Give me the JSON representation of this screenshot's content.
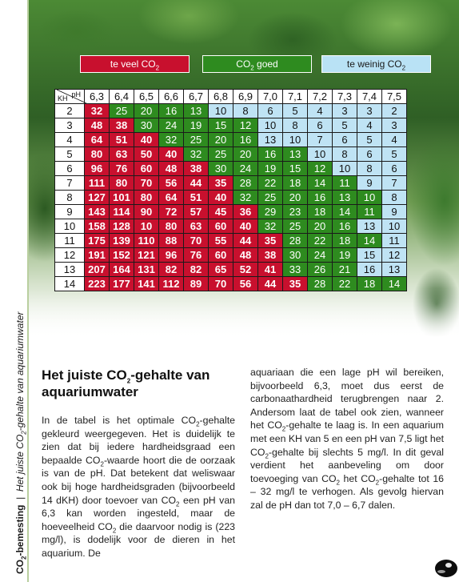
{
  "legend": {
    "too_much": [
      "te veel CO",
      "2"
    ],
    "good": [
      "CO",
      "2",
      " goed"
    ],
    "too_little": [
      "te weinig CO",
      "2"
    ]
  },
  "table": {
    "ph_label": "pH",
    "kh_label": "KH",
    "ph_values": [
      "6,3",
      "6,4",
      "6,5",
      "6,6",
      "6,7",
      "6,8",
      "6,9",
      "7,0",
      "7,1",
      "7,2",
      "7,3",
      "7,4",
      "7,5"
    ],
    "rows": [
      {
        "kh": "2",
        "values": [
          "32",
          "25",
          "20",
          "16",
          "13",
          "10",
          "8",
          "6",
          "5",
          "4",
          "3",
          "3",
          "2"
        ],
        "zones": "rggggbbbbbbbb"
      },
      {
        "kh": "3",
        "values": [
          "48",
          "38",
          "30",
          "24",
          "19",
          "15",
          "12",
          "10",
          "8",
          "6",
          "5",
          "4",
          "3"
        ],
        "zones": "rrgggggbbbbbb"
      },
      {
        "kh": "4",
        "values": [
          "64",
          "51",
          "40",
          "32",
          "25",
          "20",
          "16",
          "13",
          "10",
          "7",
          "6",
          "5",
          "4"
        ],
        "zones": "rrrggggbbbbbb"
      },
      {
        "kh": "5",
        "values": [
          "80",
          "63",
          "50",
          "40",
          "32",
          "25",
          "20",
          "16",
          "13",
          "10",
          "8",
          "6",
          "5"
        ],
        "zones": "rrrrgggggbbbb"
      },
      {
        "kh": "6",
        "values": [
          "96",
          "76",
          "60",
          "48",
          "38",
          "30",
          "24",
          "19",
          "15",
          "12",
          "10",
          "8",
          "6"
        ],
        "zones": "rrrrrgggggbbb"
      },
      {
        "kh": "7",
        "values": [
          "111",
          "80",
          "70",
          "56",
          "44",
          "35",
          "28",
          "22",
          "18",
          "14",
          "11",
          "9",
          "7"
        ],
        "zones": "rrrrrrgggggbb"
      },
      {
        "kh": "8",
        "values": [
          "127",
          "101",
          "80",
          "64",
          "51",
          "40",
          "32",
          "25",
          "20",
          "16",
          "13",
          "10",
          "8"
        ],
        "zones": "rrrrrrggggggb"
      },
      {
        "kh": "9",
        "values": [
          "143",
          "114",
          "90",
          "72",
          "57",
          "45",
          "36",
          "29",
          "23",
          "18",
          "14",
          "11",
          "9"
        ],
        "zones": "rrrrrrrgggggb"
      },
      {
        "kh": "10",
        "values": [
          "158",
          "128",
          "10",
          "80",
          "63",
          "60",
          "40",
          "32",
          "25",
          "20",
          "16",
          "13",
          "10"
        ],
        "zones": "rrrrrrrggggbb"
      },
      {
        "kh": "11",
        "values": [
          "175",
          "139",
          "110",
          "88",
          "70",
          "55",
          "44",
          "35",
          "28",
          "22",
          "18",
          "14",
          "11"
        ],
        "zones": "rrrrrrrrggggb"
      },
      {
        "kh": "12",
        "values": [
          "191",
          "152",
          "121",
          "96",
          "76",
          "60",
          "48",
          "38",
          "30",
          "24",
          "19",
          "15",
          "12"
        ],
        "zones": "rrrrrrrrgggbb"
      },
      {
        "kh": "13",
        "values": [
          "207",
          "164",
          "131",
          "82",
          "82",
          "65",
          "52",
          "41",
          "33",
          "26",
          "21",
          "16",
          "13"
        ],
        "zones": "rrrrrrrrgggbb"
      },
      {
        "kh": "14",
        "values": [
          "223",
          "177",
          "141",
          "112",
          "89",
          "70",
          "56",
          "44",
          "35",
          "28",
          "22",
          "18",
          "14"
        ],
        "zones": "rrrrrrrrrgggg"
      }
    ]
  },
  "side_label": {
    "bold_part": [
      "CO",
      "2",
      "-bemesting"
    ],
    "italic_part": [
      "Het juiste CO",
      "2",
      "-gehalte van aquariumwater"
    ]
  },
  "article": {
    "title": [
      "Het juiste CO",
      "2",
      "-gehalte van aquariumwater"
    ],
    "left_column": [
      "In de tabel is het optimale CO",
      "2",
      "-gehalte gekleurd weergegeven. Het is duidelijk te zien dat bij iedere hardheidsgraad een bepaalde CO",
      "2",
      "-waarde hoort die de oorzaak is van de pH. Dat betekent dat weliswaar ook bij hoge hardheidsgraden (bijvoorbeeld 14 dKH) door toevoer van CO",
      "2",
      " een pH van 6,3 kan worden ingesteld, maar de hoeveelheid CO",
      "2",
      " die daarvoor nodig is (223 mg/l), is dodelijk voor de dieren in het aquarium. De"
    ],
    "right_column": [
      "aquariaan die een lage pH wil bereiken, bijvoorbeeld 6,3, moet dus eerst de carbonaathardheid terugbrengen naar 2. Andersom laat de tabel ook zien, wanneer het CO",
      "2",
      "-gehalte te laag is. In een aquarium met een KH van 5 en een pH van 7,5 ligt het CO",
      "2",
      "-gehalte bij slechts 5 mg/l. In dit geval verdient het aanbeveling om door toevoeging van CO",
      "2",
      " het CO",
      "2",
      "-gehalte tot 16 – 32 mg/l te verhogen. Als gevolg hiervan zal de pH dan tot 7,0 – 6,7 dalen."
    ]
  },
  "colors": {
    "too_much": "#c8102e",
    "good": "#2e8b1f",
    "too_little": "#bfe3f4"
  }
}
